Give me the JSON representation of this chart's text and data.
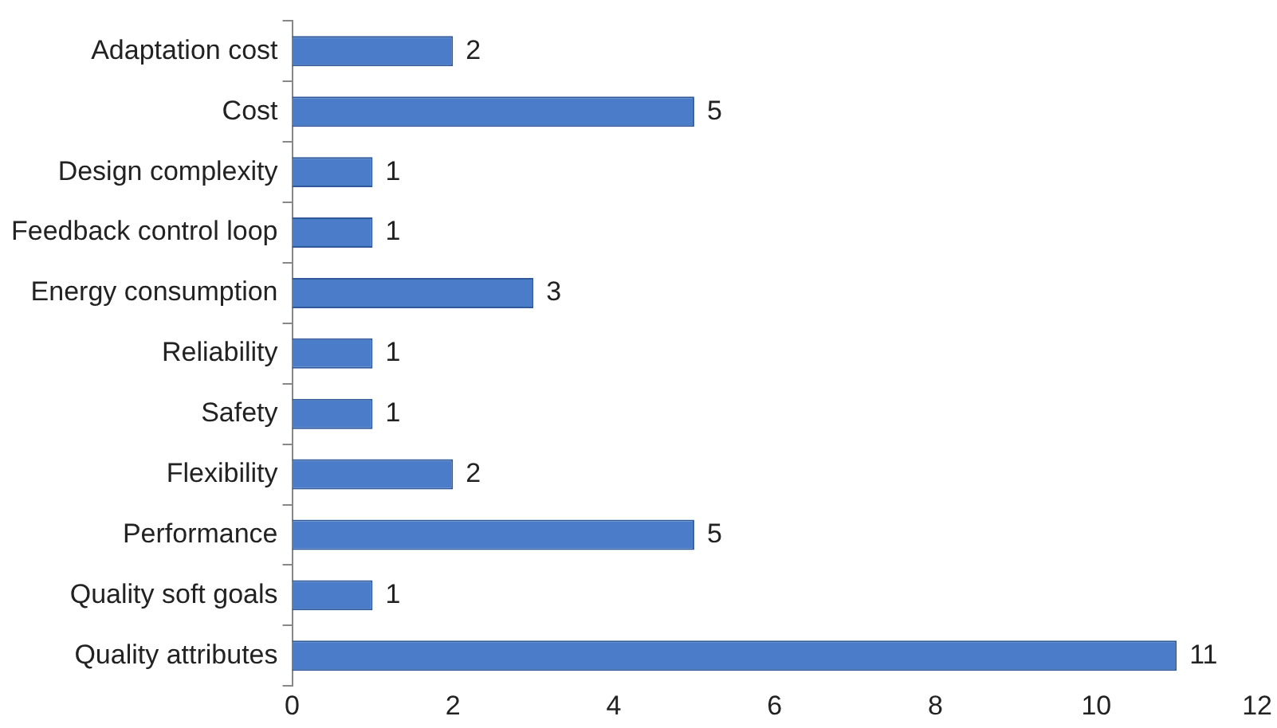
{
  "chart_data": {
    "type": "bar",
    "orientation": "horizontal",
    "categories": [
      "Adaptation cost",
      "Cost",
      "Design complexity",
      "Feedback control loop",
      "Energy consumption",
      "Reliability",
      "Safety",
      "Flexibility",
      "Performance",
      "Quality soft goals",
      "Quality attributes"
    ],
    "values": [
      2,
      5,
      1,
      1,
      3,
      1,
      1,
      2,
      5,
      1,
      11
    ],
    "color": "#4a7cc9",
    "xlim": [
      0,
      12
    ],
    "xticks": [
      0,
      2,
      4,
      6,
      8,
      10,
      12
    ],
    "grid": false,
    "legend": false,
    "data_labels": true
  }
}
